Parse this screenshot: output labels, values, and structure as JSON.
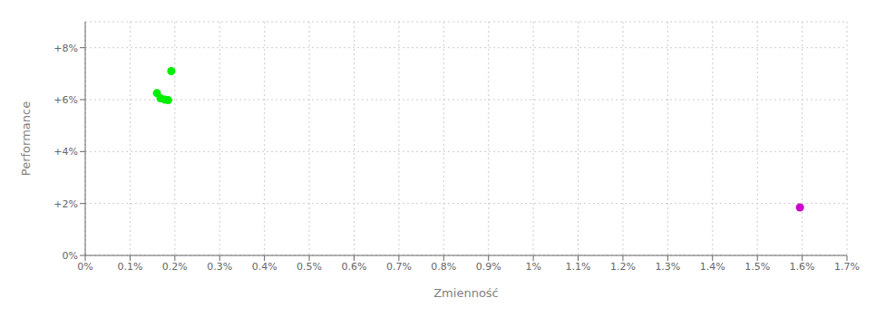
{
  "chart_data": {
    "type": "scatter",
    "x_label": "Zmienność",
    "y_label": "Performance",
    "xlim": [
      0,
      0.017
    ],
    "ylim": [
      0,
      0.09
    ],
    "xticks": [
      {
        "value": 0.0,
        "label": "0%"
      },
      {
        "value": 0.001,
        "label": "0.1%"
      },
      {
        "value": 0.002,
        "label": "0.2%"
      },
      {
        "value": 0.003,
        "label": "0.3%"
      },
      {
        "value": 0.004,
        "label": "0.4%"
      },
      {
        "value": 0.005,
        "label": "0.5%"
      },
      {
        "value": 0.006,
        "label": "0.6%"
      },
      {
        "value": 0.007,
        "label": "0.7%"
      },
      {
        "value": 0.008,
        "label": "0.8%"
      },
      {
        "value": 0.009,
        "label": "0.9%"
      },
      {
        "value": 0.01,
        "label": "1%"
      },
      {
        "value": 0.011,
        "label": "1.1%"
      },
      {
        "value": 0.012,
        "label": "1.2%"
      },
      {
        "value": 0.013,
        "label": "1.3%"
      },
      {
        "value": 0.014,
        "label": "1.4%"
      },
      {
        "value": 0.015,
        "label": "1.5%"
      },
      {
        "value": 0.016,
        "label": "1.6%"
      },
      {
        "value": 0.017,
        "label": "1.7%"
      }
    ],
    "yticks": [
      {
        "value": 0,
        "label": "0%"
      },
      {
        "value": 0.02,
        "label": "+2%"
      },
      {
        "value": 0.04,
        "label": "+4%"
      },
      {
        "value": 0.06,
        "label": "+6%"
      },
      {
        "value": 0.08,
        "label": "+8%"
      }
    ],
    "grid": true,
    "series": [
      {
        "color": "#00ee00",
        "x": [
          0.00192,
          0.0016,
          0.00168,
          0.00178,
          0.00185
        ],
        "values": [
          0.071,
          0.0625,
          0.0605,
          0.06,
          0.0598
        ]
      },
      {
        "color": "#cc00cc",
        "x": [
          0.01595
        ],
        "values": [
          0.0185
        ]
      }
    ]
  }
}
